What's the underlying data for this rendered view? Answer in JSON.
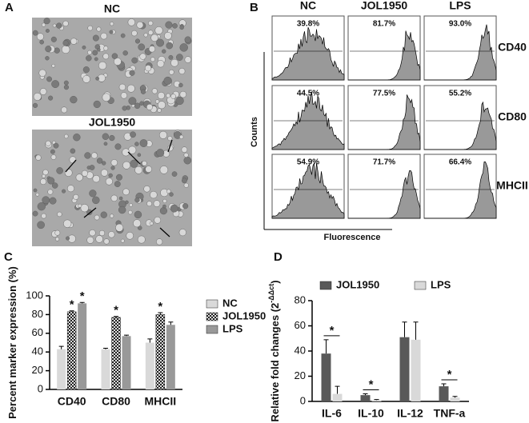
{
  "panel_a": {
    "label": "A",
    "images": [
      "NC",
      "JOL1950"
    ]
  },
  "panel_b": {
    "label": "B",
    "columns": [
      "NC",
      "JOL1950",
      "LPS"
    ],
    "rows": [
      "CD40",
      "CD80",
      "MHCII"
    ],
    "percentages": [
      [
        "39.8%",
        "81.7%",
        "93.0%"
      ],
      [
        "44.5%",
        "77.5%",
        "55.2%"
      ],
      [
        "54.9%",
        "71.7%",
        "66.4%"
      ]
    ],
    "y_label": "Counts",
    "x_label": "Fluorescence"
  },
  "chart_data": [
    {
      "panel": "C",
      "type": "bar",
      "y_label": "Percent marker expression (%)",
      "categories": [
        "CD40",
        "CD80",
        "MHCII"
      ],
      "series": [
        {
          "name": "NC",
          "color": "#d9d9d9",
          "values": [
            43,
            43,
            50
          ],
          "errors": [
            3,
            1,
            4
          ],
          "significance": [
            null,
            null,
            null
          ]
        },
        {
          "name": "JOL1950",
          "color": "#333333",
          "pattern": "checker",
          "values": [
            83,
            77,
            80
          ],
          "errors": [
            1,
            1,
            2
          ],
          "significance": [
            "*",
            "*",
            "*"
          ]
        },
        {
          "name": "LPS",
          "color": "#999999",
          "values": [
            92,
            57,
            69
          ],
          "errors": [
            1,
            1,
            3
          ],
          "significance": [
            "*",
            null,
            null
          ]
        }
      ],
      "ylim": [
        0,
        100
      ],
      "yticks": [
        0,
        20,
        40,
        60,
        80,
        100
      ],
      "legend": "right"
    },
    {
      "panel": "D",
      "type": "bar",
      "y_label": "Relative fold changes (2",
      "y_label_sup": "-ΔΔct",
      "y_label_end": ")",
      "categories": [
        "IL-6",
        "IL-10",
        "IL-12",
        "TNF-a"
      ],
      "series": [
        {
          "name": "JOL1950",
          "color": "#595959",
          "values": [
            38,
            5,
            51,
            12
          ],
          "errors": [
            11,
            1,
            12,
            2
          ]
        },
        {
          "name": "LPS",
          "color": "#d9d9d9",
          "values": [
            6,
            1,
            49,
            3
          ],
          "errors": [
            6,
            0.5,
            14,
            1
          ]
        }
      ],
      "significance": [
        "*",
        "*",
        null,
        "*"
      ],
      "ylim": [
        0,
        80
      ],
      "yticks": [
        0,
        20,
        40,
        60,
        80
      ],
      "legend": "top"
    }
  ]
}
